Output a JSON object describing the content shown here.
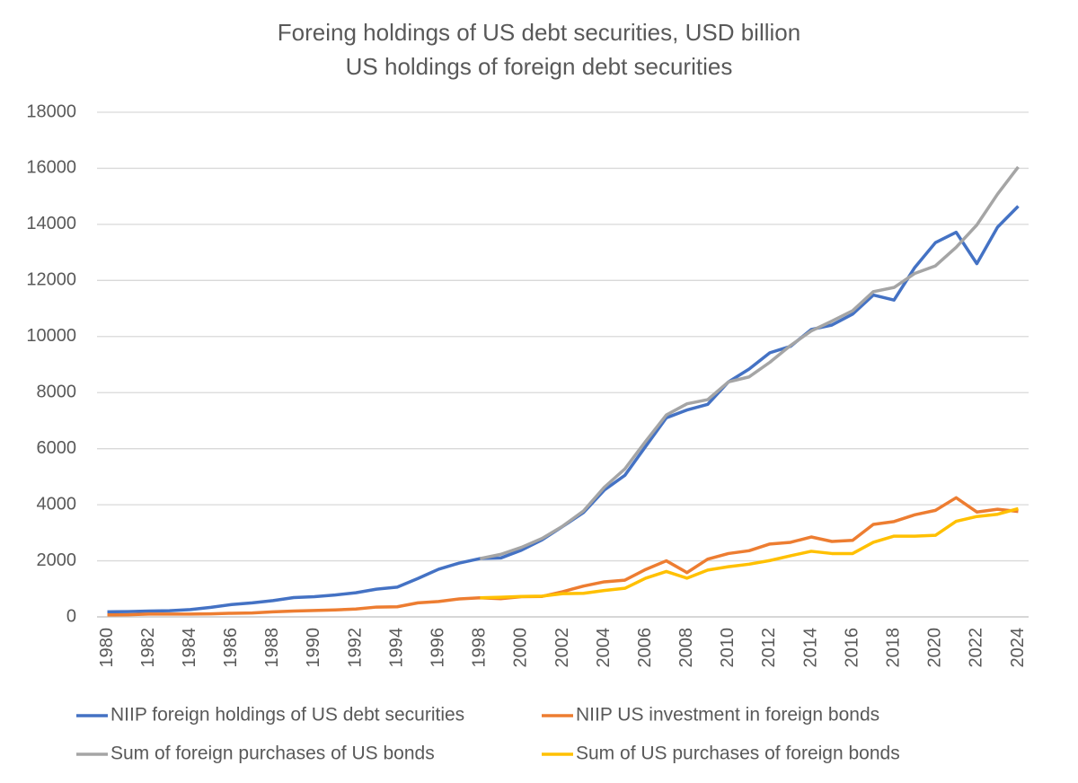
{
  "chart_data": {
    "type": "line",
    "title": "Foreing holdings of US debt securities, USD billion",
    "subtitle": "US holdings of foreign debt securities",
    "categories": [
      "1980",
      null,
      "1982",
      null,
      "1984",
      null,
      "1986",
      null,
      "1988",
      null,
      "1990",
      null,
      "1992",
      null,
      "1994",
      null,
      "1996",
      null,
      "1998",
      null,
      "2000",
      null,
      "2002",
      null,
      "2004",
      null,
      "2006",
      null,
      "2008",
      null,
      "2010",
      null,
      "2012",
      null,
      "2014",
      null,
      "2016",
      null,
      "2018",
      null,
      "2020",
      null,
      "2022",
      null,
      "2024"
    ],
    "series": [
      {
        "name": "NIIP foreign holdings of US debt securities",
        "color": "#4472c4",
        "values": [
          180,
          190,
          210,
          220,
          260,
          340,
          440,
          500,
          580,
          690,
          720,
          780,
          860,
          990,
          1060,
          1370,
          1700,
          1920,
          2080,
          2100,
          2380,
          2750,
          3230,
          3720,
          4520,
          5050,
          6080,
          7100,
          7380,
          7580,
          8380,
          8840,
          9420,
          9650,
          10250,
          10410,
          10800,
          11480,
          11300,
          12460,
          13350,
          13720,
          12600,
          13900,
          14650
        ]
      },
      {
        "name": "NIIP US investment in foreign bonds",
        "color": "#ed7d31",
        "values": [
          70,
          75,
          100,
          100,
          100,
          110,
          130,
          140,
          180,
          210,
          230,
          250,
          280,
          350,
          360,
          500,
          550,
          640,
          680,
          650,
          720,
          730,
          900,
          1100,
          1250,
          1310,
          1690,
          2000,
          1580,
          2060,
          2260,
          2360,
          2600,
          2660,
          2850,
          2690,
          2730,
          3300,
          3400,
          3640,
          3800,
          4250,
          3740,
          3840,
          3760
        ]
      },
      {
        "name": "Sum of foreign purchases of US bonds",
        "color": "#a5a5a5",
        "values": [
          null,
          null,
          null,
          null,
          null,
          null,
          null,
          null,
          null,
          null,
          null,
          null,
          null,
          null,
          null,
          null,
          null,
          null,
          2080,
          2230,
          2480,
          2800,
          3240,
          3780,
          4620,
          5280,
          6260,
          7200,
          7600,
          7750,
          8380,
          8560,
          9080,
          9680,
          10200,
          10550,
          10920,
          11600,
          11750,
          12250,
          12520,
          13180,
          13980,
          15080,
          16050
        ]
      },
      {
        "name": "Sum of US purchases of foreign bonds",
        "color": "#ffc000",
        "values": [
          null,
          null,
          null,
          null,
          null,
          null,
          null,
          null,
          null,
          null,
          null,
          null,
          null,
          null,
          null,
          null,
          null,
          null,
          680,
          700,
          730,
          740,
          830,
          840,
          940,
          1020,
          1380,
          1620,
          1380,
          1670,
          1790,
          1880,
          2010,
          2180,
          2340,
          2260,
          2260,
          2660,
          2880,
          2880,
          2910,
          3410,
          3580,
          3660,
          3860
        ]
      }
    ],
    "ylim": [
      0,
      18000
    ],
    "yticks": [
      0,
      2000,
      4000,
      6000,
      8000,
      10000,
      12000,
      14000,
      16000,
      18000
    ],
    "grid": true
  }
}
